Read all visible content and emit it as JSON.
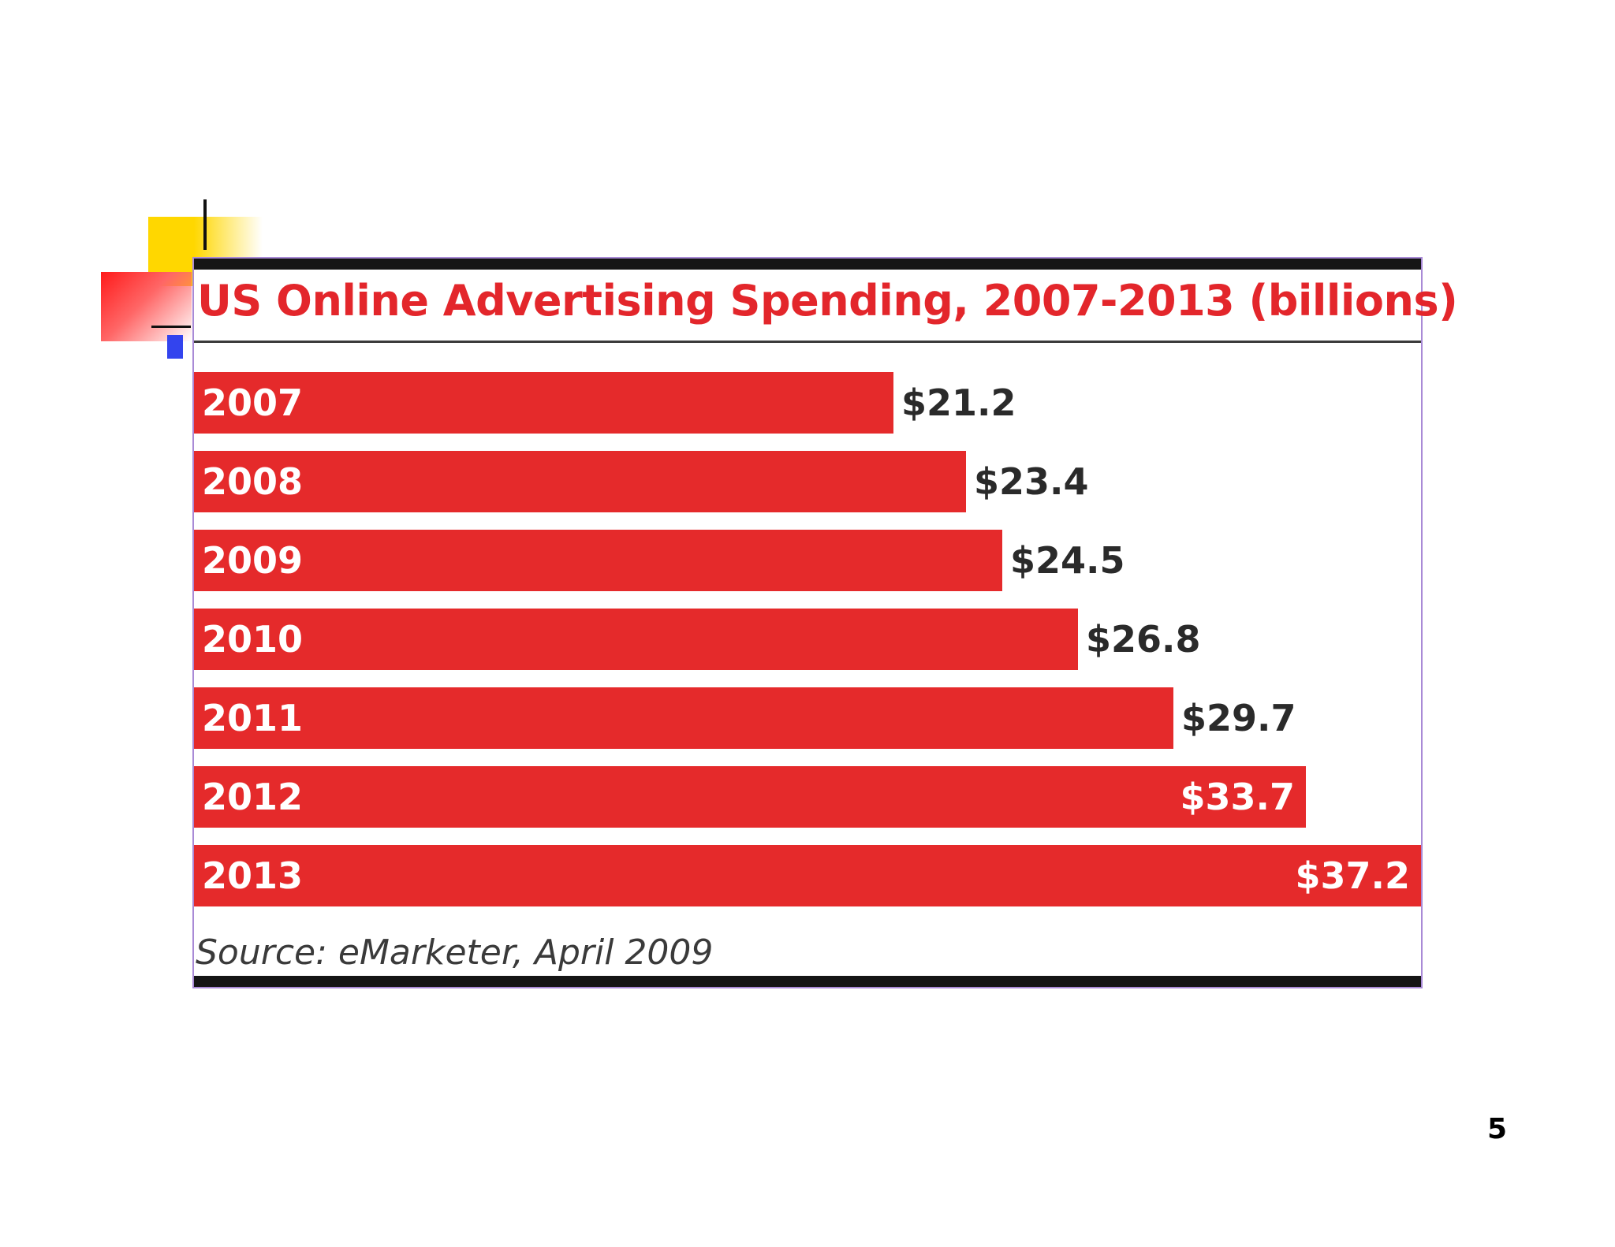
{
  "slide": {
    "page_number": "5"
  },
  "chart_data": {
    "type": "bar",
    "orientation": "horizontal",
    "title": "US Online Advertising Spending, 2007-2013 (billions)",
    "categories": [
      "2007",
      "2008",
      "2009",
      "2010",
      "2011",
      "2012",
      "2013"
    ],
    "values": [
      21.2,
      23.4,
      24.5,
      26.8,
      29.7,
      33.7,
      37.2
    ],
    "value_labels": [
      "$21.2",
      "$23.4",
      "$24.5",
      "$26.8",
      "$29.7",
      "$33.7",
      "$37.2"
    ],
    "source": "Source: eMarketer, April 2009",
    "colors": {
      "bar": "#e52a2b",
      "title": "#e3262b"
    }
  }
}
